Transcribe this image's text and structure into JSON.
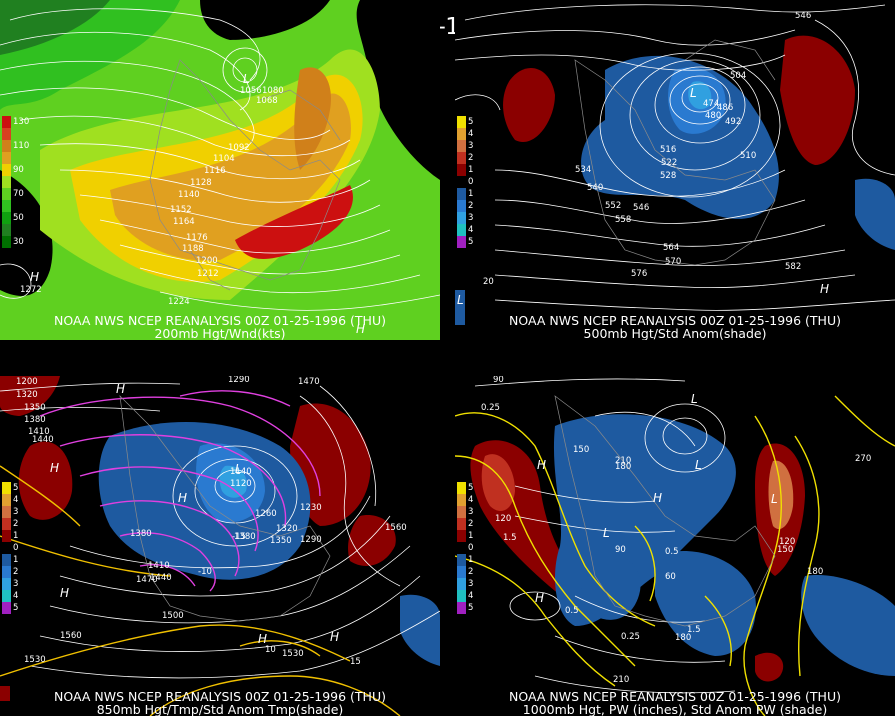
{
  "main_title": "00Z 01-25-1996 (THU)",
  "panels": [
    {
      "id": "200mb",
      "caption_line1": "NOAA NWS NCEP REANALYSIS 00Z 01-25-1996 (THU)",
      "caption_line2": "200mb Hgt/Wnd(kts)",
      "legend": [
        {
          "label": "130",
          "color": "#cc1010"
        },
        {
          "label": "",
          "color": "#d84020"
        },
        {
          "label": "110",
          "color": "#d0801a"
        },
        {
          "label": "",
          "color": "#e0a020"
        },
        {
          "label": "90",
          "color": "#f0d000"
        },
        {
          "label": "",
          "color": "#a0e020"
        },
        {
          "label": "70",
          "color": "#5fd020"
        },
        {
          "label": "",
          "color": "#30c020"
        },
        {
          "label": "50",
          "color": "#10a010"
        },
        {
          "label": "",
          "color": "#208020"
        },
        {
          "label": "30",
          "color": "#007000"
        }
      ],
      "contour_labels": [
        "1056",
        "1068",
        "1080",
        "1092",
        "1104",
        "1116",
        "1128",
        "1140",
        "1152",
        "1164",
        "1176",
        "1188",
        "1200",
        "1212",
        "1224",
        "1272"
      ],
      "highs_lows": [
        "L",
        "H",
        "H"
      ]
    },
    {
      "id": "500mb",
      "caption_line1": "NOAA NWS NCEP REANALYSIS 00Z 01-25-1996 (THU)",
      "caption_line2": "500mb Hgt/Std Anom(shade)",
      "legend": [
        {
          "label": "5",
          "color": "#f0e000"
        },
        {
          "label": "4",
          "color": "#e0a030"
        },
        {
          "label": "3",
          "color": "#d07040"
        },
        {
          "label": "2",
          "color": "#c03020"
        },
        {
          "label": "1",
          "color": "#8b0000"
        },
        {
          "label": "0",
          "color": "#000000"
        },
        {
          "label": "1",
          "color": "#1e5aa0"
        },
        {
          "label": "2",
          "color": "#2a7ad0"
        },
        {
          "label": "3",
          "color": "#30a0e0"
        },
        {
          "label": "4",
          "color": "#20c0c0"
        },
        {
          "label": "5",
          "color": "#a020c0"
        }
      ],
      "contour_labels": [
        "546",
        "504",
        "486",
        "492",
        "474",
        "480",
        "516",
        "510",
        "522",
        "528",
        "534",
        "540",
        "552",
        "546",
        "558",
        "564",
        "570",
        "576",
        "582",
        "20"
      ],
      "highs_lows": [
        "L",
        "L",
        "H"
      ]
    },
    {
      "id": "850mb",
      "caption_line1": "NOAA NWS NCEP REANALYSIS 00Z 01-25-1996 (THU)",
      "caption_line2": "850mb Hgt/Tmp/Std Anom Tmp(shade)",
      "legend": [
        {
          "label": "5",
          "color": "#f0e000"
        },
        {
          "label": "4",
          "color": "#e0a030"
        },
        {
          "label": "3",
          "color": "#d07040"
        },
        {
          "label": "2",
          "color": "#c03020"
        },
        {
          "label": "1",
          "color": "#8b0000"
        },
        {
          "label": "0",
          "color": "#000000"
        },
        {
          "label": "1",
          "color": "#1e5aa0"
        },
        {
          "label": "2",
          "color": "#2a7ad0"
        },
        {
          "label": "3",
          "color": "#30a0e0"
        },
        {
          "label": "4",
          "color": "#20c0c0"
        },
        {
          "label": "5",
          "color": "#a020c0"
        }
      ],
      "contour_labels": [
        "1290",
        "1470",
        "1200",
        "1320",
        "1350",
        "1380",
        "1410",
        "1440",
        "1140",
        "1120",
        "1260",
        "1230",
        "1380",
        "1350",
        "1320",
        "1290",
        "1560",
        "1470",
        "1440",
        "1410",
        "1380",
        "1500",
        "1560",
        "1530",
        "1530",
        "-15",
        "-10",
        "10",
        "15"
      ],
      "highs_lows": [
        "H",
        "H",
        "H",
        "L",
        "H",
        "H",
        "H"
      ]
    },
    {
      "id": "1000mb",
      "caption_line1": "NOAA NWS NCEP REANALYSIS 00Z 01-25-1996 (THU)",
      "caption_line2": "1000mb Hgt, PW (inches), Std Anom PW (shade)",
      "legend": [
        {
          "label": "5",
          "color": "#f0e000"
        },
        {
          "label": "4",
          "color": "#e0a030"
        },
        {
          "label": "3",
          "color": "#d07040"
        },
        {
          "label": "2",
          "color": "#c03020"
        },
        {
          "label": "1",
          "color": "#8b0000"
        },
        {
          "label": "0",
          "color": "#000000"
        },
        {
          "label": "1",
          "color": "#1e5aa0"
        },
        {
          "label": "2",
          "color": "#2a7ad0"
        },
        {
          "label": "3",
          "color": "#30a0e0"
        },
        {
          "label": "4",
          "color": "#20c0c0"
        },
        {
          "label": "5",
          "color": "#a020c0"
        }
      ],
      "contour_labels": [
        "90",
        "150",
        "210",
        "180",
        "120",
        "90",
        "60",
        "0.25",
        "1.5",
        "0.5",
        "0.25",
        "1.5",
        "210",
        "180",
        "120",
        "150",
        "180",
        "270",
        "0.5"
      ],
      "highs_lows": [
        "L",
        "L",
        "H",
        "H",
        "L",
        "H",
        "L"
      ]
    }
  ]
}
